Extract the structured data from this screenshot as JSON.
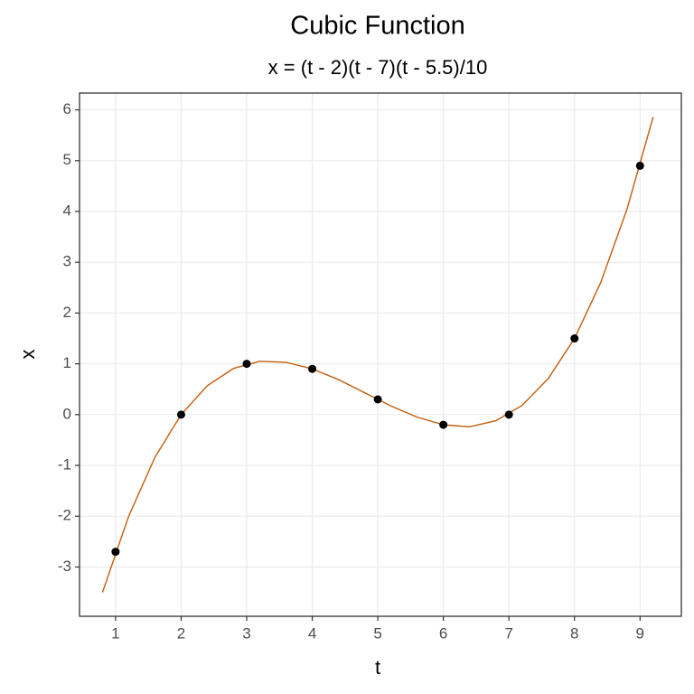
{
  "chart_data": {
    "type": "line",
    "title": "Cubic Function",
    "subtitle": "x = (t - 2)(t - 7)(t - 5.5)/10",
    "x_label": "t",
    "y_label": "x",
    "xlim": [
      0.45,
      9.63
    ],
    "ylim": [
      -3.97,
      6.33
    ],
    "xticks": [
      1,
      2,
      3,
      4,
      5,
      6,
      7,
      8,
      9
    ],
    "yticks": [
      -3,
      -2,
      -1,
      0,
      1,
      2,
      3,
      4,
      5,
      6
    ],
    "grid": true,
    "series": [
      {
        "type": "line",
        "color": "#c45c0c",
        "x": [
          0.8,
          1.2,
          1.6,
          2.0,
          2.4,
          2.8,
          3.2,
          3.6,
          4.0,
          4.4,
          4.8,
          5.2,
          5.6,
          6.0,
          6.4,
          6.8,
          7.2,
          7.6,
          8.0,
          8.4,
          8.8,
          9.2
        ],
        "values": [
          -3.5,
          -2.0,
          -0.84,
          0,
          0.57,
          0.91,
          1.05,
          1.03,
          0.9,
          0.69,
          0.43,
          0.17,
          -0.05,
          -0.2,
          -0.24,
          -0.12,
          0.18,
          0.71,
          1.5,
          2.6,
          4.04,
          5.86
        ]
      },
      {
        "type": "scatter",
        "color": "#000000",
        "x": [
          1,
          2,
          3,
          4,
          5,
          6,
          7,
          8,
          9
        ],
        "values": [
          -2.7,
          0,
          1,
          0.9,
          0.3,
          -0.2,
          0,
          1.5,
          4.9
        ]
      }
    ]
  }
}
